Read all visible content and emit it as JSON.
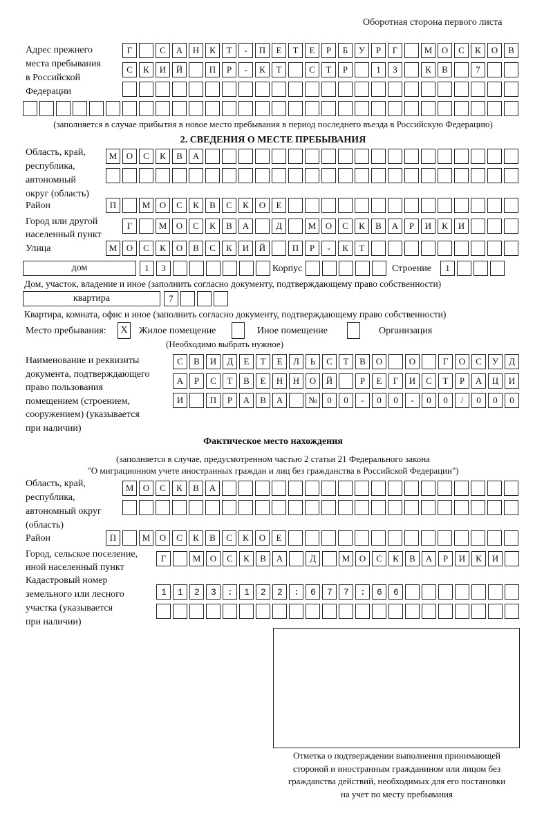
{
  "header": "Оборотная сторона первого листа",
  "prev_address": {
    "label": [
      "Адрес прежнего",
      "места пребывания",
      "в Российской",
      "Федерации"
    ],
    "rows": [
      "Г САНКТ-ПЕТЕРБУРГ МОСКОВ",
      "СКИЙ ПР-КТ СТР 13 КВ 7",
      "",
      ""
    ],
    "note": "(заполняется в случае прибытия в новое место пребывания в период последнего въезда в Российскую Федерацию)"
  },
  "section2": {
    "title": "2. СВЕДЕНИЯ О МЕСТЕ ПРЕБЫВАНИЯ",
    "region_label": [
      "Область, край,",
      "республика,",
      "автономный",
      "округ (область)"
    ],
    "region_rows": [
      "МОСКВА",
      ""
    ],
    "district_label": "Район",
    "district": "П МОСКВСКОЕ",
    "city_label": [
      "Город или другой",
      "населенный пункт"
    ],
    "city": "Г МОСКВА Д МОСКВАРИКИ",
    "street_label": "Улица",
    "street": "МОСКОВСКИЙ ПР-КТ",
    "house_type": "дом",
    "house_number": "13",
    "korpus_label": "Корпус",
    "korpus": "",
    "building_label": "Строение",
    "building": "1",
    "house_note": "Дом, участок, владение и иное (заполнить согласно документу, подтверждающему право собственности)",
    "flat_type": "квартира",
    "flat_number": "7",
    "flat_note": "Квартира, комната, офис и иное (заполнить согласно документу, подтверждающему право собственности)",
    "stay_label": "Место пребывания:",
    "stay_options": [
      {
        "label": "Жилое помещение",
        "mark": "X"
      },
      {
        "label": "Иное помещение",
        "mark": ""
      },
      {
        "label": "Организация",
        "mark": ""
      }
    ],
    "stay_note": "(Необходимо выбрать нужное)",
    "doc_label": [
      "Наименование и реквизиты",
      "документа, подтверждающего",
      "право пользования",
      "помещением (строением,",
      "сооружением) (указывается",
      "при наличии)"
    ],
    "doc_rows": [
      "СВИДЕТЕЛЬСТВО О ГОСУД",
      "АРСТВЕННОЙ РЕГИСТРАЦИ",
      "И ПРАВА №00-00-00/000"
    ]
  },
  "actual": {
    "title": "Фактическое место нахождения",
    "note": [
      "(заполняется в случае, предусмотренном частью 2 статьи 21 Федерального закона",
      "\"О миграционном учете иностранных граждан и лиц без гражданства в Российской Федерации\")"
    ],
    "region_label": [
      "Область, край,",
      "республика,",
      "автономный округ",
      "(область)"
    ],
    "region_rows": [
      "МОСКВА",
      ""
    ],
    "district_label": "Район",
    "district": "П МОСКВСКОЕ",
    "city_label": [
      "Город, сельское поселение,",
      "иной населенный пункт"
    ],
    "city": "Г МОСКВА Д МОСКВАРИКИ",
    "cadastral_label": [
      "Кадастровый номер",
      "земельного или лесного",
      "участка (указывается",
      "при наличии)"
    ],
    "cadastral_rows": [
      "1123:122:677:66",
      ""
    ]
  },
  "stamp_caption": [
    "Отметка о подтверждении выполнения принимающей",
    "стороной и иностранным гражданином или лицом без",
    "гражданства действий, необходимых для его постановки",
    "на учет по месту пребывания"
  ]
}
